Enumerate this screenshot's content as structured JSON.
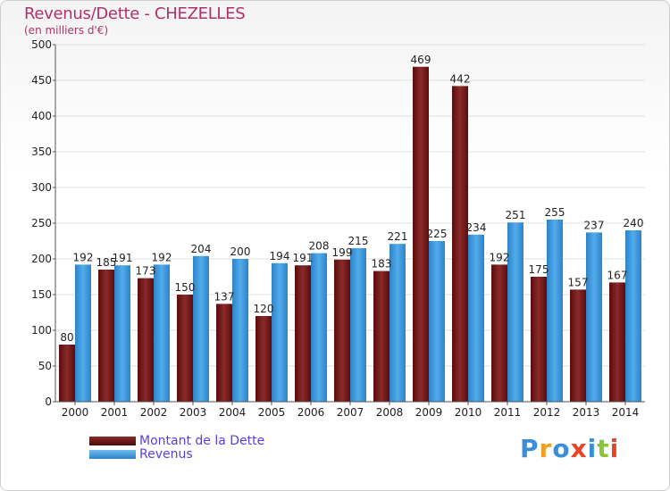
{
  "title": "Revenus/Dette - CHEZELLES",
  "subtitle": "(en milliers d'€)",
  "logo": "Proxiti",
  "colors": {
    "dette": "#7a1a1a",
    "revenus": "#3d9be0",
    "title": "#b0306a",
    "legend_text": "#5a3de0"
  },
  "chart_data": {
    "type": "bar",
    "title": "Revenus/Dette - CHEZELLES",
    "subtitle": "(en milliers d'€)",
    "categories": [
      "2000",
      "2001",
      "2002",
      "2003",
      "2004",
      "2005",
      "2006",
      "2007",
      "2008",
      "2009",
      "2010",
      "2011",
      "2012",
      "2013",
      "2014"
    ],
    "series": [
      {
        "name": "Montant de la Dette",
        "values": [
          80,
          185,
          173,
          150,
          137,
          120,
          191,
          199,
          183,
          469,
          442,
          192,
          175,
          157,
          167
        ]
      },
      {
        "name": "Revenus",
        "values": [
          192,
          191,
          192,
          204,
          200,
          194,
          208,
          215,
          221,
          225,
          234,
          251,
          255,
          237,
          240
        ]
      }
    ],
    "yticks": [
      0,
      50,
      100,
      150,
      200,
      250,
      300,
      350,
      400,
      450,
      500
    ],
    "ylim": [
      0,
      500
    ],
    "grid": true,
    "legend_position": "bottom-left"
  }
}
